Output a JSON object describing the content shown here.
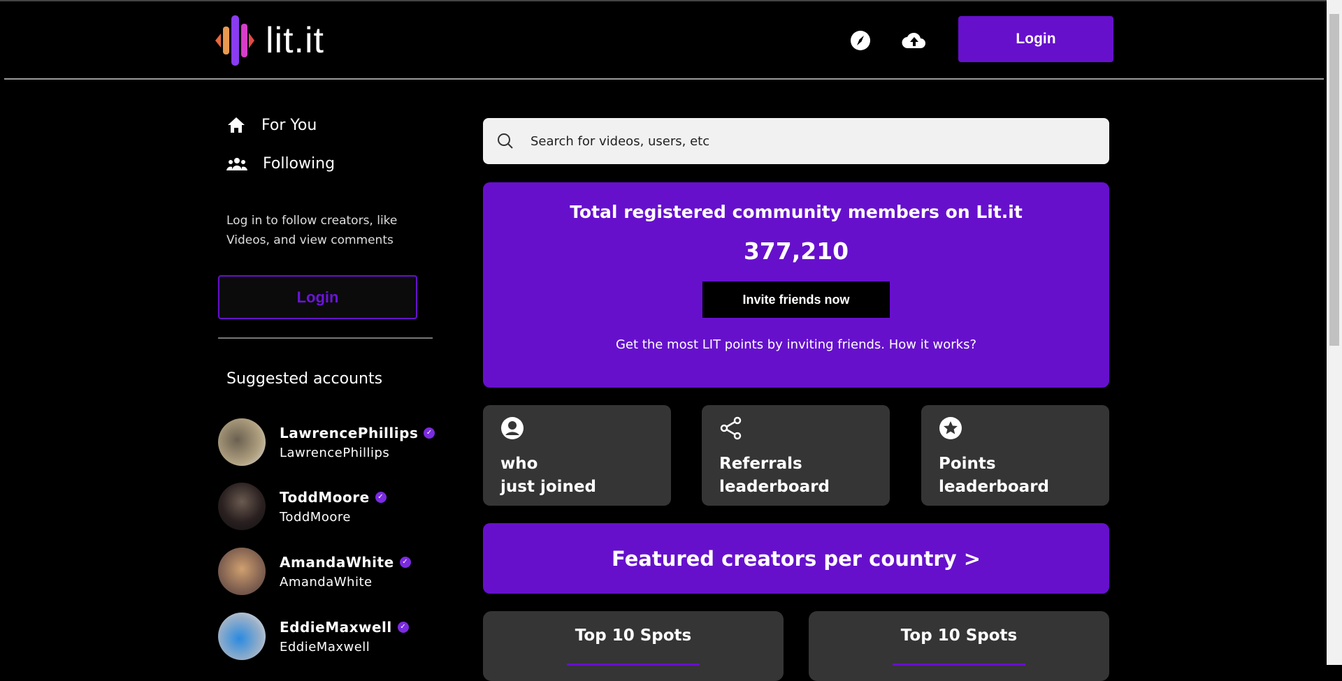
{
  "header": {
    "logo_text": "lit.it",
    "login_label": "Login",
    "icons": [
      "compass-icon",
      "upload-cloud-icon"
    ]
  },
  "sidebar": {
    "nav": [
      {
        "label": "For You",
        "icon": "home-icon"
      },
      {
        "label": "Following",
        "icon": "users-icon"
      }
    ],
    "hint": "Log in to follow creators, like Videos, and view comments",
    "login_label": "Login",
    "suggested_title": "Suggested accounts",
    "accounts": [
      {
        "name": "LawrencePhillips",
        "username": "LawrencePhillips",
        "verified": true
      },
      {
        "name": "ToddMoore",
        "username": "ToddMoore",
        "verified": true
      },
      {
        "name": "AmandaWhite",
        "username": "AmandaWhite",
        "verified": true
      },
      {
        "name": "EddieMaxwell",
        "username": "EddieMaxwell",
        "verified": true
      }
    ]
  },
  "main": {
    "search_placeholder": "Search for videos, users, etc",
    "stats": {
      "title": "Total registered community members on Lit.it",
      "count": "377,210",
      "invite_label": "Invite friends now",
      "footer": "Get the most LIT points by inviting friends. How it works?"
    },
    "tiles": [
      {
        "line1": "who",
        "line2": "just joined",
        "icon": "user-circle-icon"
      },
      {
        "line1": "Referrals",
        "line2": "leaderboard",
        "icon": "share-icon"
      },
      {
        "line1": "Points",
        "line2": "leaderboard",
        "icon": "star-circle-icon"
      }
    ],
    "featured_label": "Featured creators per country >",
    "top_cards": [
      {
        "title": "Top 10 Spots"
      },
      {
        "title": "Top 10 Spots"
      }
    ]
  },
  "colors": {
    "accent": "#6610cc",
    "tile_bg": "#353535",
    "background": "#000000"
  }
}
